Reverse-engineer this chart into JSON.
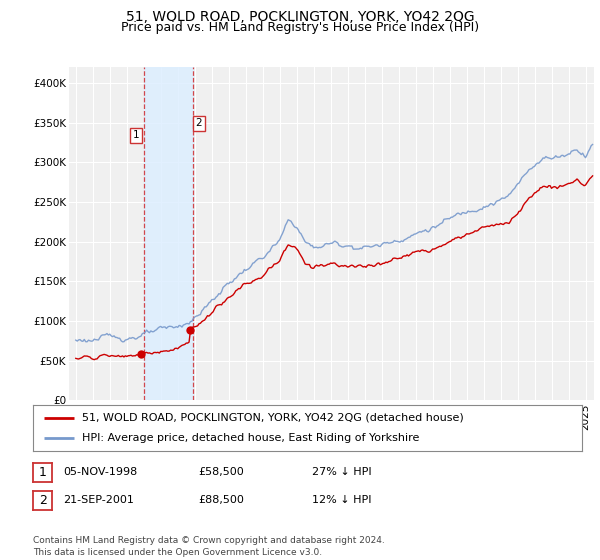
{
  "title": "51, WOLD ROAD, POCKLINGTON, YORK, YO42 2QG",
  "subtitle": "Price paid vs. HM Land Registry's House Price Index (HPI)",
  "ylim": [
    0,
    420000
  ],
  "yticks": [
    0,
    50000,
    100000,
    150000,
    200000,
    250000,
    300000,
    350000,
    400000
  ],
  "ytick_labels": [
    "£0",
    "£50K",
    "£100K",
    "£150K",
    "£200K",
    "£250K",
    "£300K",
    "£350K",
    "£400K"
  ],
  "background_color": "#ffffff",
  "plot_bg_color": "#f0f0f0",
  "grid_color": "#ffffff",
  "red_color": "#cc0000",
  "blue_color": "#7799cc",
  "span_color": "#ddeeff",
  "sale1_date": 1999.0,
  "sale1_price": 58500,
  "sale2_date": 2001.9,
  "sale2_price": 88500,
  "legend_red_label": "51, WOLD ROAD, POCKLINGTON, YORK, YO42 2QG (detached house)",
  "legend_blue_label": "HPI: Average price, detached house, East Riding of Yorkshire",
  "sale1_text": "05-NOV-1998",
  "sale1_amount": "£58,500",
  "sale1_pct": "27% ↓ HPI",
  "sale2_text": "21-SEP-2001",
  "sale2_amount": "£88,500",
  "sale2_pct": "12% ↓ HPI",
  "footer": "Contains HM Land Registry data © Crown copyright and database right 2024.\nThis data is licensed under the Open Government Licence v3.0.",
  "title_fontsize": 10,
  "subtitle_fontsize": 9,
  "tick_fontsize": 7.5,
  "legend_fontsize": 8,
  "footer_fontsize": 6.5
}
